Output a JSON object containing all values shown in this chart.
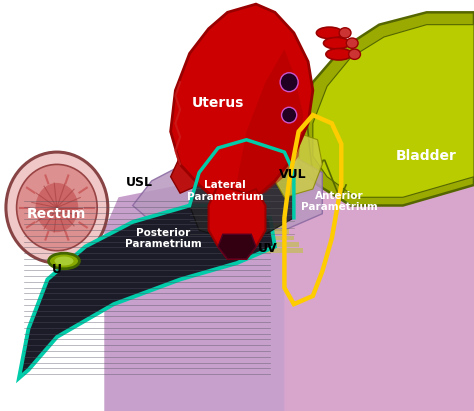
{
  "bg_color": "#ffffff",
  "uterus_color": "#cc0000",
  "uterus_dark": "#990000",
  "bladder_outer": "#9aaa00",
  "bladder_inner": "#b8cc00",
  "bladder_border": "#556600",
  "rectum_outer": "#e8b0b0",
  "rectum_inner": "#cc7070",
  "rectum_border": "#884444",
  "purple_bg": "#c8a0cc",
  "pink_bg": "#e8a8cc",
  "lavender_bg": "#d0b0d8",
  "posterior_fill": "#252530",
  "cyan_color": "#00ccaa",
  "yellow_color": "#ffcc00",
  "olive_color": "#aaaa33",
  "ureter_color": "#99bb00",
  "label_uterus": [
    "Uterus",
    0.46,
    0.75,
    "white",
    10,
    "bold"
  ],
  "label_bladder": [
    "Bladder",
    0.9,
    0.62,
    "white",
    10,
    "bold"
  ],
  "label_rectum": [
    "Rectum",
    0.12,
    0.48,
    "white",
    10,
    "bold"
  ],
  "label_usl": [
    "USL",
    0.295,
    0.555,
    "black",
    9,
    "bold"
  ],
  "label_vul": [
    "VUL",
    0.618,
    0.575,
    "black",
    9,
    "bold"
  ],
  "label_u": [
    "U",
    0.12,
    0.345,
    "black",
    9,
    "bold"
  ],
  "label_uv": [
    "UV",
    0.565,
    0.395,
    "black",
    9,
    "bold"
  ],
  "label_lateral": [
    "Lateral\nParametrium",
    0.475,
    0.535,
    "white",
    7.5,
    "bold"
  ],
  "label_anterior": [
    "Anterior\nParametrium",
    0.715,
    0.51,
    "white",
    7.5,
    "bold"
  ],
  "label_posterior": [
    "Posterior\nParametrium",
    0.345,
    0.42,
    "white",
    7.5,
    "bold"
  ]
}
